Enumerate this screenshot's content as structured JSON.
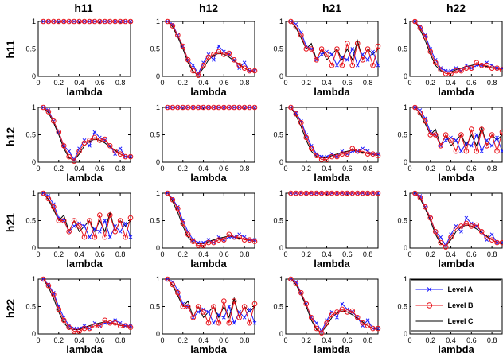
{
  "chart_data": {
    "type": "line",
    "layout_grid": "4x4",
    "column_titles": [
      "h11",
      "h12",
      "h21",
      "h22"
    ],
    "row_titles": [
      "h11",
      "h12",
      "h21",
      "h22"
    ],
    "xlabel": "lambda",
    "xlim": [
      0,
      0.9
    ],
    "ylim": [
      0,
      1
    ],
    "x_ticks": [
      "0",
      "0.2",
      "0.4",
      "0.6",
      "0.8"
    ],
    "y_ticks": [
      "0",
      "0.5",
      "1"
    ],
    "x": [
      0.05,
      0.1,
      0.15,
      0.2,
      0.25,
      0.3,
      0.35,
      0.4,
      0.45,
      0.5,
      0.55,
      0.6,
      0.65,
      0.7,
      0.75,
      0.8,
      0.85,
      0.9
    ],
    "legend": {
      "location": "inside-bottom-right-panel",
      "entries": [
        "Level A",
        "Level B",
        "Level C"
      ]
    },
    "colors": {
      "Level A": "#1f1fff",
      "Level B": "#e8141c",
      "Level C": "#000000"
    },
    "markers": {
      "Level A": "x",
      "Level B": "o",
      "Level C": "none"
    },
    "profiles": {
      "P1": {
        "Level A": [
          1.0,
          0.95,
          0.75,
          0.55,
          0.3,
          0.2,
          0.05,
          0.25,
          0.4,
          0.3,
          0.55,
          0.45,
          0.4,
          0.3,
          0.15,
          0.25,
          0.1,
          0.1
        ],
        "Level B": [
          1.0,
          0.92,
          0.75,
          0.55,
          0.3,
          0.1,
          0.02,
          0.2,
          0.35,
          0.4,
          0.45,
          0.4,
          0.42,
          0.3,
          0.2,
          0.15,
          0.1,
          0.1
        ],
        "Level C": [
          1.0,
          0.9,
          0.72,
          0.5,
          0.25,
          0.08,
          0.03,
          0.15,
          0.3,
          0.38,
          0.42,
          0.4,
          0.35,
          0.28,
          0.22,
          0.15,
          0.1,
          0.08
        ]
      },
      "P2": {
        "Level A": [
          1.0,
          0.95,
          0.8,
          0.55,
          0.5,
          0.3,
          0.4,
          0.45,
          0.4,
          0.2,
          0.35,
          0.3,
          0.5,
          0.2,
          0.4,
          0.3,
          0.45,
          0.2
        ],
        "Level B": [
          1.0,
          0.9,
          0.75,
          0.5,
          0.5,
          0.3,
          0.5,
          0.4,
          0.2,
          0.5,
          0.2,
          0.6,
          0.2,
          0.6,
          0.3,
          0.5,
          0.2,
          0.55
        ],
        "Level C": [
          1.0,
          0.88,
          0.7,
          0.5,
          0.6,
          0.3,
          0.5,
          0.3,
          0.4,
          0.5,
          0.3,
          0.5,
          0.3,
          0.65,
          0.3,
          0.5,
          0.4,
          0.5
        ]
      },
      "P3": {
        "Level A": [
          1.0,
          0.9,
          0.75,
          0.5,
          0.3,
          0.15,
          0.1,
          0.1,
          0.15,
          0.1,
          0.2,
          0.15,
          0.2,
          0.2,
          0.25,
          0.2,
          0.15,
          0.15
        ],
        "Level B": [
          1.0,
          0.88,
          0.72,
          0.45,
          0.25,
          0.12,
          0.05,
          0.05,
          0.1,
          0.1,
          0.15,
          0.15,
          0.25,
          0.2,
          0.2,
          0.15,
          0.15,
          0.12
        ],
        "Level C": [
          1.0,
          0.85,
          0.65,
          0.4,
          0.2,
          0.1,
          0.08,
          0.08,
          0.12,
          0.15,
          0.18,
          0.2,
          0.22,
          0.2,
          0.18,
          0.16,
          0.14,
          0.12
        ]
      }
    },
    "panels": [
      {
        "row": 0,
        "col": 0,
        "constant": 1
      },
      {
        "row": 0,
        "col": 1,
        "profile": "P1"
      },
      {
        "row": 0,
        "col": 2,
        "profile": "P2"
      },
      {
        "row": 0,
        "col": 3,
        "profile": "P3"
      },
      {
        "row": 1,
        "col": 0,
        "profile": "P1"
      },
      {
        "row": 1,
        "col": 1,
        "constant": 1
      },
      {
        "row": 1,
        "col": 2,
        "profile": "P3"
      },
      {
        "row": 1,
        "col": 3,
        "profile": "P2"
      },
      {
        "row": 2,
        "col": 0,
        "profile": "P2"
      },
      {
        "row": 2,
        "col": 1,
        "profile": "P3"
      },
      {
        "row": 2,
        "col": 2,
        "constant": 1
      },
      {
        "row": 2,
        "col": 3,
        "profile": "P1"
      },
      {
        "row": 3,
        "col": 0,
        "profile": "P3"
      },
      {
        "row": 3,
        "col": 1,
        "profile": "P2"
      },
      {
        "row": 3,
        "col": 2,
        "profile": "P1"
      },
      {
        "row": 3,
        "col": 3,
        "legend_only": true
      }
    ]
  }
}
